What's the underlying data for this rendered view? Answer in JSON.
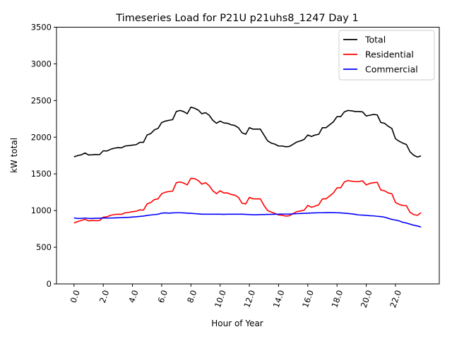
{
  "chart_data": {
    "type": "line",
    "title": "Timeseries Load for P21U p21uhs8_1247  Day 1",
    "xlabel": "Hour of Year",
    "ylabel": "kW total",
    "xlim": [
      -1.2,
      25.0
    ],
    "ylim": [
      0,
      3500
    ],
    "xticks": [
      "0.0",
      "2.0",
      "4.0",
      "6.0",
      "8.0",
      "10.0",
      "12.0",
      "14.0",
      "16.0",
      "18.0",
      "20.0",
      "22.0"
    ],
    "xtick_values": [
      0,
      2,
      4,
      6,
      8,
      10,
      12,
      14,
      16,
      18,
      20,
      22
    ],
    "yticks": [
      "0",
      "500",
      "1000",
      "1500",
      "2000",
      "2500",
      "3000",
      "3500"
    ],
    "ytick_values": [
      0,
      500,
      1000,
      1500,
      2000,
      2500,
      3000,
      3500
    ],
    "legend_position": "top-right",
    "grid": false,
    "x_step_hours": 0.25,
    "series": [
      {
        "name": "Total",
        "color": "#000000",
        "values": [
          1732,
          1750,
          1760,
          1785,
          1758,
          1760,
          1765,
          1762,
          1815,
          1812,
          1835,
          1850,
          1858,
          1855,
          1880,
          1885,
          1893,
          1898,
          1930,
          1930,
          2030,
          2050,
          2100,
          2120,
          2200,
          2220,
          2230,
          2240,
          2350,
          2365,
          2350,
          2320,
          2410,
          2395,
          2370,
          2320,
          2335,
          2300,
          2230,
          2190,
          2220,
          2195,
          2190,
          2170,
          2160,
          2130,
          2060,
          2040,
          2130,
          2110,
          2110,
          2110,
          2030,
          1950,
          1920,
          1905,
          1880,
          1880,
          1870,
          1875,
          1905,
          1935,
          1950,
          1970,
          2030,
          2010,
          2030,
          2040,
          2130,
          2130,
          2170,
          2210,
          2280,
          2280,
          2345,
          2365,
          2360,
          2350,
          2350,
          2345,
          2290,
          2300,
          2310,
          2305,
          2200,
          2190,
          2150,
          2120,
          1980,
          1945,
          1920,
          1900,
          1800,
          1755,
          1730,
          1745
        ]
      },
      {
        "name": "Residential",
        "color": "#ff0000",
        "values": [
          830,
          850,
          865,
          880,
          860,
          865,
          862,
          864,
          910,
          915,
          935,
          945,
          950,
          948,
          970,
          975,
          985,
          990,
          1010,
          1005,
          1090,
          1110,
          1150,
          1160,
          1230,
          1250,
          1260,
          1265,
          1380,
          1390,
          1375,
          1350,
          1440,
          1435,
          1410,
          1360,
          1380,
          1340,
          1270,
          1230,
          1270,
          1240,
          1240,
          1220,
          1210,
          1180,
          1100,
          1090,
          1180,
          1160,
          1160,
          1160,
          1070,
          1000,
          980,
          960,
          940,
          935,
          925,
          930,
          960,
          985,
          995,
          1005,
          1070,
          1045,
          1060,
          1080,
          1160,
          1160,
          1200,
          1240,
          1310,
          1310,
          1390,
          1410,
          1400,
          1395,
          1395,
          1405,
          1350,
          1370,
          1380,
          1385,
          1280,
          1270,
          1240,
          1230,
          1110,
          1085,
          1070,
          1065,
          975,
          945,
          935,
          970
        ]
      },
      {
        "name": "Commercial",
        "color": "#0000ff",
        "values": [
          900,
          892,
          893,
          898,
          893,
          892,
          895,
          895,
          900,
          898,
          898,
          900,
          902,
          903,
          906,
          908,
          912,
          915,
          920,
          925,
          933,
          940,
          945,
          950,
          965,
          968,
          965,
          968,
          970,
          970,
          968,
          965,
          962,
          958,
          955,
          950,
          950,
          950,
          950,
          950,
          950,
          948,
          950,
          950,
          950,
          950,
          950,
          948,
          945,
          943,
          943,
          945,
          945,
          948,
          948,
          950,
          950,
          952,
          952,
          952,
          955,
          958,
          960,
          962,
          965,
          967,
          968,
          970,
          970,
          972,
          972,
          972,
          970,
          968,
          965,
          960,
          955,
          948,
          940,
          938,
          935,
          930,
          928,
          922,
          918,
          910,
          895,
          880,
          870,
          860,
          840,
          830,
          815,
          800,
          790,
          775
        ]
      }
    ]
  }
}
